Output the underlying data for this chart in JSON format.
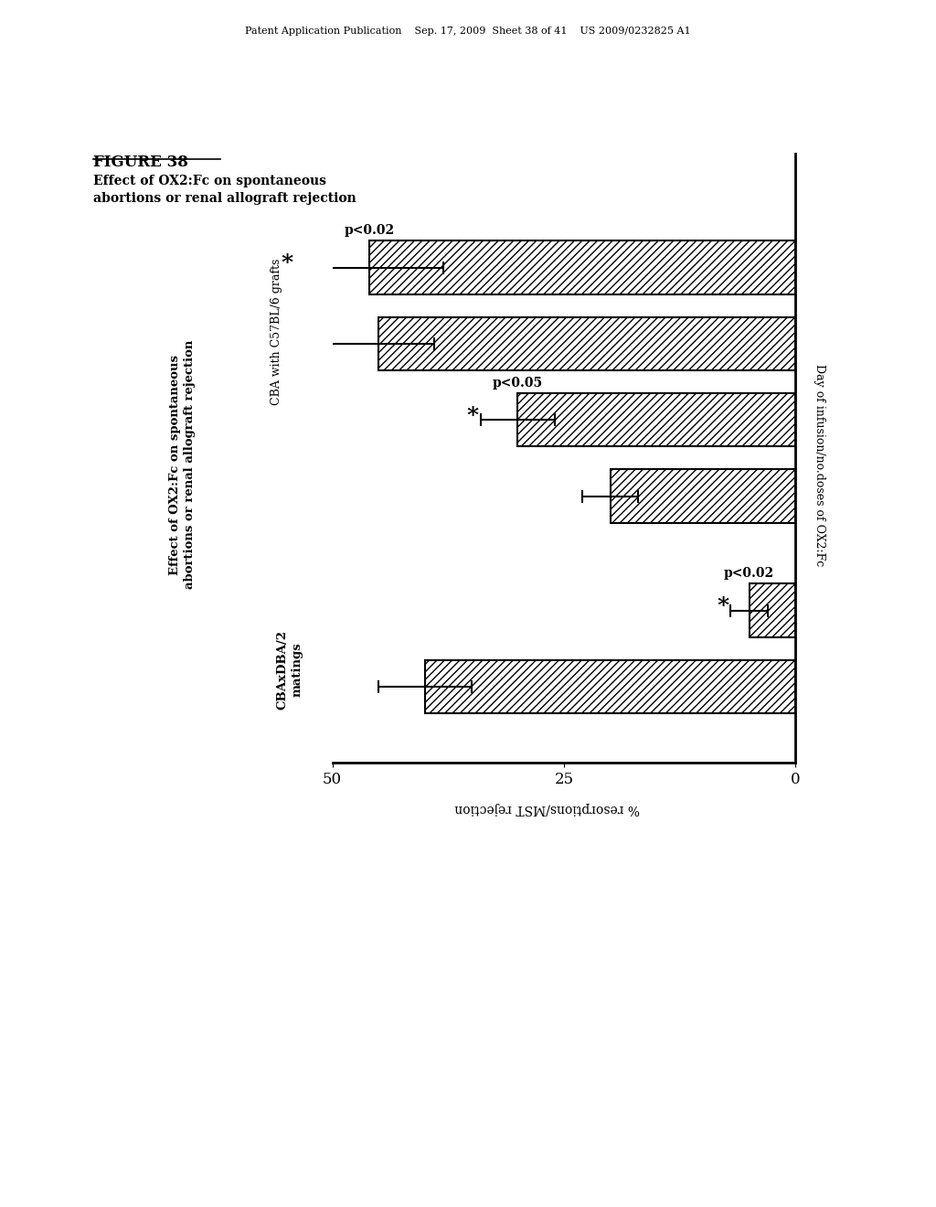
{
  "patent_header": "Patent Application Publication    Sep. 17, 2009  Sheet 38 of 41    US 2009/0232825 A1",
  "figure_label": "FIGURE 38",
  "title_line1": "Effect of OX2:Fc on spontaneous",
  "title_line2": "abortions or renal allograft rejection",
  "group1_label": "CBAxDBA/2\nmatings",
  "group2_label": "CBA with C57BL/6 grafts",
  "yaxis_label": "% resorptions/MST rejection",
  "xaxis_label": "Day of infusion/no.doses of OX2:Fc",
  "y_positions": [
    1.0,
    2.0,
    3.5,
    4.5,
    5.5,
    6.5
  ],
  "bar_vals": [
    40,
    5,
    20,
    30,
    45,
    46
  ],
  "bar_errs": [
    5,
    2,
    3,
    4,
    6,
    8
  ],
  "bar_height": 0.7,
  "xlim": [
    50,
    0
  ],
  "ylim": [
    0,
    8.0
  ],
  "xticks": [
    50,
    25,
    0
  ],
  "xticklabels": [
    "50",
    "25",
    "0"
  ],
  "sig_annotations": [
    {
      "bar_idx": 5,
      "label": "p<0.02"
    },
    {
      "bar_idx": 3,
      "label": "p<0.05"
    },
    {
      "bar_idx": 1,
      "label": "p<0.02"
    }
  ],
  "hatch": "////",
  "bar_color": "#ffffff",
  "edge_color": "#000000",
  "background_color": "#ffffff"
}
